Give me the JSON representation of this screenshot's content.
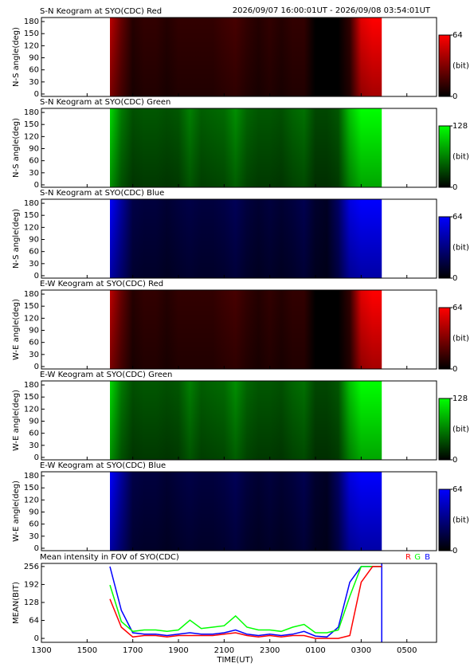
{
  "header": "2026/09/07 16:00:01UT - 2026/09/08 03:54:01UT",
  "chart_data": [
    {
      "type": "keogram",
      "title": "S-N Keogram at SYO(CDC) Red",
      "ylabel": "N-S angle(deg)",
      "color": "#ff0000",
      "ylim": [
        -6,
        190
      ],
      "yticks": [
        0,
        30,
        60,
        90,
        120,
        150,
        180
      ],
      "colorbar": {
        "ticks": [
          0,
          64
        ],
        "label": "(bit)"
      }
    },
    {
      "type": "keogram",
      "title": "S-N Keogram at SYO(CDC) Green",
      "ylabel": "N-S angle(deg)",
      "color": "#00ff00",
      "ylim": [
        -6,
        190
      ],
      "yticks": [
        0,
        30,
        60,
        90,
        120,
        150,
        180
      ],
      "colorbar": {
        "ticks": [
          0,
          128
        ],
        "label": "(bit)"
      }
    },
    {
      "type": "keogram",
      "title": "S-N Keogram at SYO(CDC) Blue",
      "ylabel": "N-S angle(deg)",
      "color": "#0000ff",
      "ylim": [
        -6,
        190
      ],
      "yticks": [
        0,
        30,
        60,
        90,
        120,
        150,
        180
      ],
      "colorbar": {
        "ticks": [
          0,
          64
        ],
        "label": "(bit)"
      }
    },
    {
      "type": "keogram",
      "title": "E-W Keogram at SYO(CDC) Red",
      "ylabel": "W-E angle(deg)",
      "color": "#ff0000",
      "ylim": [
        -6,
        190
      ],
      "yticks": [
        0,
        30,
        60,
        90,
        120,
        150,
        180
      ],
      "colorbar": {
        "ticks": [
          0,
          64
        ],
        "label": "(bit)"
      }
    },
    {
      "type": "keogram",
      "title": "E-W Keogram at SYO(CDC) Green",
      "ylabel": "W-E angle(deg)",
      "color": "#00ff00",
      "ylim": [
        -6,
        190
      ],
      "yticks": [
        0,
        30,
        60,
        90,
        120,
        150,
        180
      ],
      "colorbar": {
        "ticks": [
          0,
          128
        ],
        "label": "(bit)"
      }
    },
    {
      "type": "keogram",
      "title": "E-W Keogram at SYO(CDC) Blue",
      "ylabel": "W-E angle(deg)",
      "color": "#0000ff",
      "ylim": [
        -6,
        190
      ],
      "yticks": [
        0,
        30,
        60,
        90,
        120,
        150,
        180
      ],
      "colorbar": {
        "ticks": [
          0,
          64
        ],
        "label": "(bit)"
      }
    },
    {
      "type": "line",
      "title": "Mean intensity in FOV of SYO(CDC)",
      "ylabel": "MEAN(BIT)",
      "xlabel": "TIME(UT)",
      "xlim": [
        13,
        30.3
      ],
      "xticks": [
        {
          "value": 13,
          "label": "1300"
        },
        {
          "value": 15,
          "label": "1500"
        },
        {
          "value": 17,
          "label": "1700"
        },
        {
          "value": 19,
          "label": "1900"
        },
        {
          "value": 21,
          "label": "2100"
        },
        {
          "value": 23,
          "label": "2300"
        },
        {
          "value": 25,
          "label": "0100"
        },
        {
          "value": 27,
          "label": "0300"
        },
        {
          "value": 29,
          "label": "0500"
        }
      ],
      "ylim": [
        -14,
        267
      ],
      "yticks": [
        0,
        64,
        128,
        192,
        256
      ],
      "marker_x": 27.9,
      "x": [
        16,
        16.5,
        17,
        17.5,
        18,
        18.5,
        19,
        19.5,
        20,
        20.5,
        21,
        21.5,
        22,
        22.5,
        23,
        23.5,
        24,
        24.5,
        25,
        25.5,
        26,
        26.5,
        27,
        27.5,
        27.9
      ],
      "series": [
        {
          "name": "R",
          "color": "#ff0000",
          "values": [
            140,
            40,
            5,
            10,
            10,
            5,
            10,
            10,
            10,
            10,
            15,
            20,
            10,
            5,
            10,
            5,
            10,
            10,
            0,
            0,
            0,
            10,
            200,
            256,
            256
          ]
        },
        {
          "name": "G",
          "color": "#00ff00",
          "values": [
            190,
            60,
            25,
            30,
            30,
            25,
            30,
            65,
            35,
            40,
            45,
            80,
            40,
            30,
            30,
            25,
            40,
            50,
            20,
            20,
            30,
            150,
            256,
            256,
            256
          ]
        },
        {
          "name": "B",
          "color": "#0000ff",
          "values": [
            256,
            100,
            20,
            15,
            15,
            10,
            15,
            20,
            15,
            15,
            20,
            30,
            15,
            10,
            15,
            10,
            15,
            25,
            8,
            5,
            40,
            200,
            256,
            256,
            256
          ]
        }
      ]
    }
  ]
}
